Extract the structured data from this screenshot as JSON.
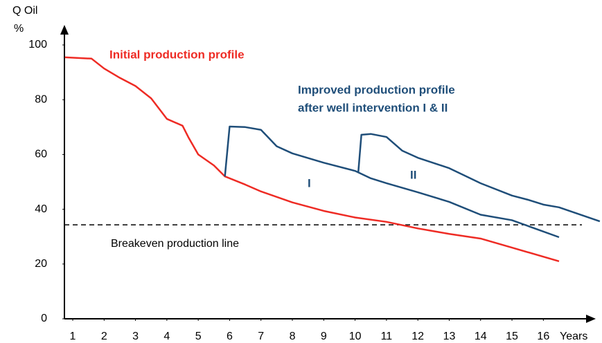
{
  "chart_data": {
    "type": "line",
    "y_label": "Q Oil",
    "y_unit": "%",
    "x_label": "Years",
    "xlim": [
      0.735,
      17.45
    ],
    "ylim": [
      0,
      100
    ],
    "xticks": [
      1,
      2,
      3,
      4,
      5,
      6,
      7,
      8,
      9,
      10,
      11,
      12,
      13,
      14,
      15,
      16
    ],
    "yticks": [
      0,
      20,
      40,
      60,
      80,
      100
    ],
    "series": [
      {
        "name": "Initial production profile",
        "color": "#ee2b24",
        "x": [
          0.75,
          1.6,
          2,
          2.5,
          3,
          3.5,
          3.8,
          4,
          4.5,
          4.7,
          5,
          5.5,
          5.85,
          6.5,
          7,
          8,
          9,
          10,
          11,
          12,
          13,
          14,
          15,
          16.5
        ],
        "values": [
          95.5,
          95,
          91.4,
          88,
          85,
          80.5,
          76,
          73,
          70.5,
          66,
          60,
          56,
          52,
          49,
          46.5,
          42.5,
          39.4,
          37,
          35.4,
          33,
          31,
          29.3,
          26,
          21
        ]
      },
      {
        "name": "I",
        "color": "#1f4e79",
        "x": [
          5.85,
          6,
          6.5,
          7,
          7.5,
          8,
          9,
          10,
          10.5,
          11,
          12,
          13,
          14,
          15,
          16.5
        ],
        "values": [
          52,
          70.2,
          70,
          69,
          63,
          60.4,
          57,
          54,
          51.3,
          49.5,
          46.2,
          42.7,
          38,
          36,
          29.8
        ]
      },
      {
        "name": "II",
        "color": "#1f4e79",
        "x": [
          10.1,
          10.2,
          10.5,
          11,
          11.5,
          12,
          13,
          14,
          15,
          15.5,
          16,
          16.5,
          17.8
        ],
        "values": [
          53.3,
          67.2,
          67.5,
          66.4,
          61.4,
          58.8,
          55,
          49.5,
          45,
          43.5,
          41.7,
          40.7,
          35.6
        ]
      }
    ],
    "breakeven": {
      "value": 34.3,
      "label": "Breakeven production line"
    },
    "annotations": [
      "Improved production profile",
      "after well intervention I & II"
    ]
  }
}
